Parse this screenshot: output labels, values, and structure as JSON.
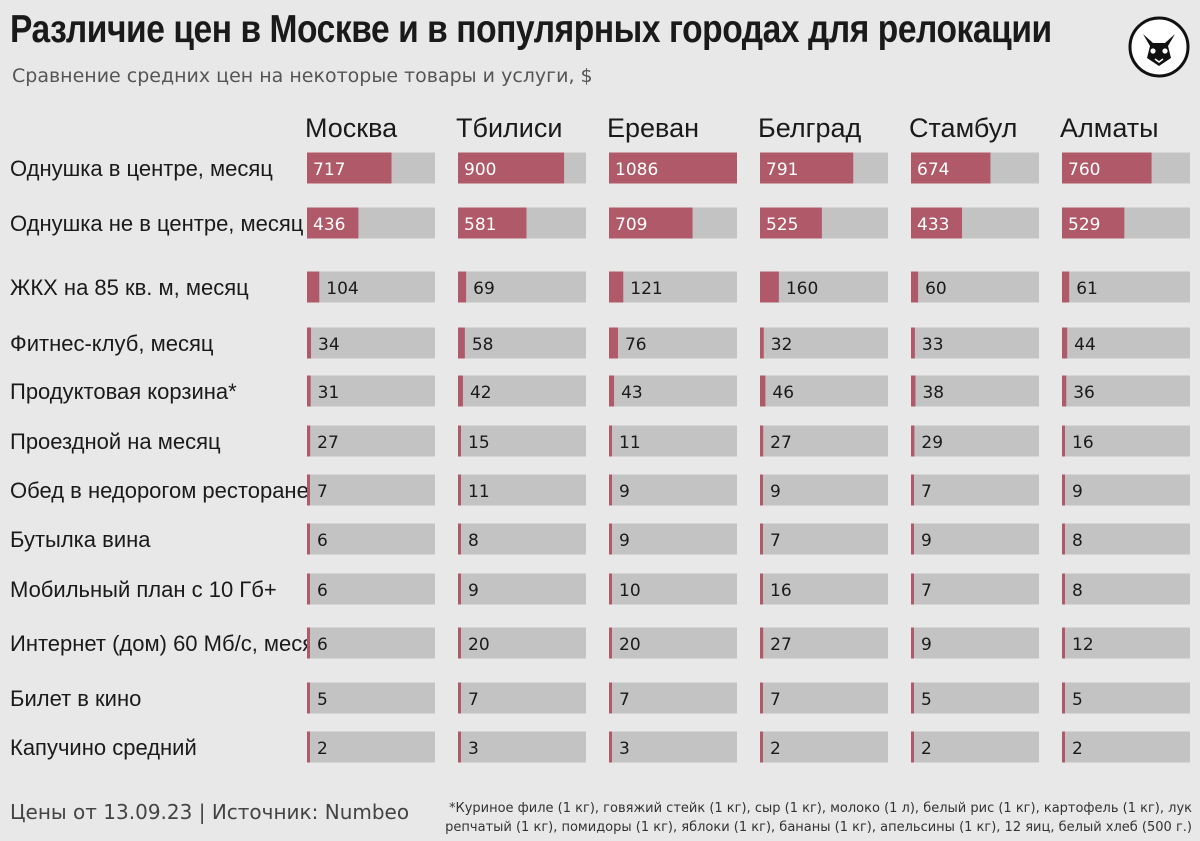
{
  "title": "Различие цен в Москве и в популярных городах для релокации",
  "subtitle": "Сравнение средних цен на некоторые товары и услуги, $",
  "footer": {
    "source": "Цены от 13.09.23 | Источник: Numbeo",
    "footnote": "*Куриное филе (1 кг), говяжий стейк (1 кг), сыр (1 кг), молоко (1 л), белый рис (1 кг), картофель (1 кг), лук репчатый (1 кг), помидоры (1 кг), яблоки (1 кг), бананы (1 кг), апельсины (1 кг), 12 яиц, белый хлеб (500 г.)"
  },
  "logo_icon": "fox-head-icon",
  "colors": {
    "bar": "#b05a69",
    "track": "#c3c3c3",
    "background": "#e8e8e8"
  },
  "chart_data": {
    "type": "bar",
    "orientation": "horizontal",
    "title": "Различие цен в Москве и в популярных городах для релокации",
    "subtitle": "Сравнение средних цен на некоторые товары и услуги, $",
    "categories": [
      "Однушка в центре, месяц",
      "Однушка не в центре, месяц",
      "ЖКХ на 85 кв. м, месяц",
      "Фитнес-клуб, месяц",
      "Продуктовая корзина*",
      "Проездной на месяц",
      "Обед в недорогом ресторане",
      "Бутылка вина",
      "Мобильный план с 10 Гб+",
      "Интернет (дом) 60 Мб/с, месяц",
      "Билет в кино",
      "Капучино средний"
    ],
    "series": [
      {
        "name": "Москва",
        "values": [
          717,
          436,
          104,
          34,
          31,
          27,
          7,
          6,
          6,
          6,
          5,
          2
        ]
      },
      {
        "name": "Тбилиси",
        "values": [
          900,
          581,
          69,
          58,
          42,
          15,
          11,
          8,
          9,
          20,
          7,
          3
        ]
      },
      {
        "name": "Ереван",
        "values": [
          1086,
          709,
          121,
          76,
          43,
          11,
          9,
          9,
          10,
          20,
          7,
          3
        ]
      },
      {
        "name": "Белград",
        "values": [
          791,
          525,
          160,
          32,
          46,
          27,
          9,
          7,
          16,
          27,
          7,
          2
        ]
      },
      {
        "name": "Стамбул",
        "values": [
          674,
          433,
          60,
          33,
          38,
          29,
          7,
          9,
          7,
          9,
          5,
          2
        ]
      },
      {
        "name": "Алматы",
        "values": [
          760,
          529,
          61,
          44,
          36,
          16,
          9,
          8,
          8,
          12,
          5,
          2
        ]
      }
    ],
    "xlim": [
      0,
      1086
    ],
    "grid": false,
    "legend": "none"
  }
}
